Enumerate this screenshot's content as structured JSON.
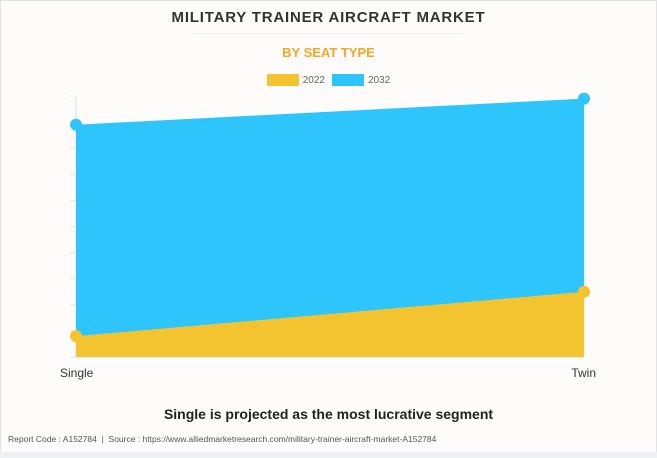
{
  "title": "MILITARY TRAINER AIRCRAFT MARKET",
  "subtitle": "BY SEAT TYPE",
  "headline": "Single is projected as the most lucrative segment",
  "footer": {
    "report_code": "Report Code : A152784",
    "separator": "|",
    "source": "Source : https://www.alliedmarketresearch.com/military-trainer-aircraft-market-A152784"
  },
  "colors": {
    "series_2022": "#f4c430",
    "series_2032": "#2ec4fc",
    "subtitle": "#f5a623"
  },
  "chart_data": {
    "type": "area",
    "title": "MILITARY TRAINER AIRCRAFT MARKET",
    "subtitle": "BY SEAT TYPE",
    "categories": [
      "Single",
      "Twin"
    ],
    "series": [
      {
        "name": "2022",
        "values": [
          0.8,
          2.5
        ],
        "color": "#f4c430"
      },
      {
        "name": "2032",
        "values": [
          8.9,
          9.9
        ],
        "color": "#2ec4fc"
      }
    ],
    "xlabel": "",
    "ylabel": "",
    "ylim": [
      0,
      10
    ],
    "y_ticks_labeled": false,
    "grid": true,
    "legend": "top-center",
    "note": "Values in relative gridline units; y-axis tick labels not shown"
  }
}
